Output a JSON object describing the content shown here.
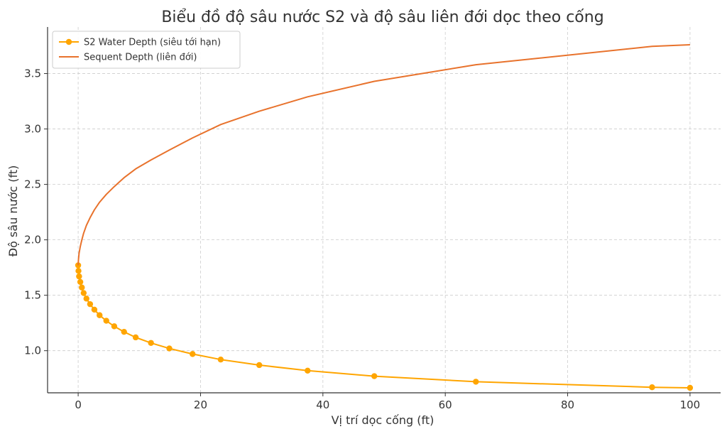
{
  "chart_data": {
    "type": "line",
    "title": "Biểu đồ độ sâu nước S2 và độ sâu liên đới dọc theo cống",
    "xlabel": "Vị trí dọc cống (ft)",
    "ylabel": "Độ sâu nước (ft)",
    "xlim": [
      -5,
      105
    ],
    "ylim": [
      0.62,
      3.92
    ],
    "xticks": [
      0,
      20,
      40,
      60,
      80,
      100
    ],
    "yticks": [
      1.0,
      1.5,
      2.0,
      2.5,
      3.0,
      3.5
    ],
    "xtick_labels": [
      "0",
      "20",
      "40",
      "60",
      "80",
      "100"
    ],
    "ytick_labels": [
      "1.0",
      "1.5",
      "2.0",
      "2.5",
      "3.0",
      "3.5"
    ],
    "grid": true,
    "legend_position": "top-left",
    "series": [
      {
        "name": "S2 Water Depth (siêu tới hạn)",
        "color": "#FFA500",
        "marker": "circle",
        "x": [
          0.0,
          0.05,
          0.15,
          0.35,
          0.6,
          0.9,
          1.35,
          1.95,
          2.65,
          3.5,
          4.6,
          5.9,
          7.5,
          9.4,
          11.9,
          14.9,
          18.7,
          23.3,
          29.6,
          37.5,
          48.4,
          65.0,
          93.8,
          100.0
        ],
        "y": [
          1.77,
          1.72,
          1.67,
          1.62,
          1.57,
          1.52,
          1.47,
          1.42,
          1.37,
          1.32,
          1.27,
          1.22,
          1.17,
          1.12,
          1.07,
          1.02,
          0.97,
          0.92,
          0.87,
          0.82,
          0.77,
          0.72,
          0.67,
          0.665
        ]
      },
      {
        "name": "Sequent Depth (liên đới)",
        "color": "#E8722C",
        "marker": "none",
        "x": [
          0.0,
          0.05,
          0.15,
          0.35,
          0.6,
          0.9,
          1.35,
          1.95,
          2.65,
          3.5,
          4.6,
          5.9,
          7.5,
          9.4,
          11.9,
          14.9,
          18.7,
          23.3,
          29.6,
          37.5,
          48.4,
          65.0,
          93.8,
          100.0
        ],
        "y": [
          1.77,
          1.82,
          1.88,
          1.94,
          2.0,
          2.06,
          2.13,
          2.2,
          2.27,
          2.34,
          2.41,
          2.48,
          2.56,
          2.64,
          2.72,
          2.81,
          2.92,
          3.04,
          3.16,
          3.29,
          3.43,
          3.58,
          3.745,
          3.76
        ]
      }
    ]
  }
}
